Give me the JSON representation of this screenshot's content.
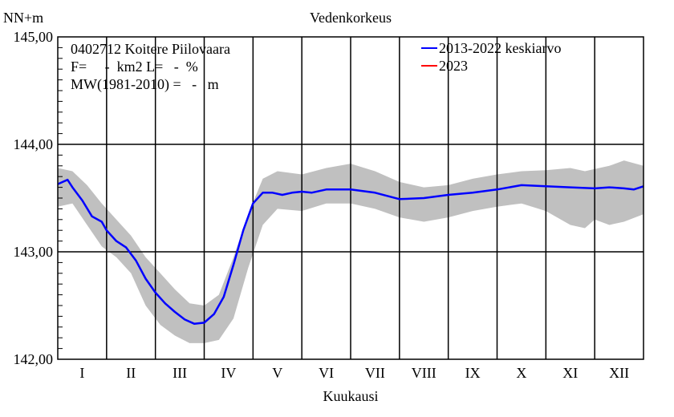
{
  "chart_data": {
    "type": "line",
    "title": "Vedenkorkeus",
    "ylabel": "NN+m",
    "xlabel": "Kuukausi",
    "ylim": [
      142.0,
      145.0
    ],
    "y_ticks": [
      "142,00",
      "143,00",
      "144,00",
      "145,00"
    ],
    "y_tick_values": [
      142.0,
      143.0,
      144.0,
      145.0
    ],
    "categories": [
      "I",
      "II",
      "III",
      "IV",
      "V",
      "VI",
      "VII",
      "VIII",
      "IX",
      "X",
      "XI",
      "XII"
    ],
    "xlim": [
      0,
      12
    ],
    "grid": true,
    "info": {
      "station": "0402712 Koitere Piilovaara",
      "area": "F=     -  km2 L=   -  %",
      "mw": "MW(1981-2010) =   -   m"
    },
    "legend_placement": "top-right",
    "series": [
      {
        "name": "2013-2022 keskiarvo",
        "color": "#0000ff",
        "x": [
          0,
          0.1,
          0.2,
          0.3,
          0.5,
          0.7,
          0.9,
          1.0,
          1.2,
          1.4,
          1.6,
          1.8,
          2.0,
          2.2,
          2.4,
          2.6,
          2.8,
          3.0,
          3.2,
          3.4,
          3.6,
          3.8,
          4.0,
          4.2,
          4.4,
          4.6,
          4.8,
          5.0,
          5.2,
          5.5,
          6.0,
          6.5,
          7.0,
          7.5,
          8.0,
          8.5,
          9.0,
          9.5,
          10.0,
          10.5,
          11.0,
          11.3,
          11.6,
          11.8,
          12.0
        ],
        "y": [
          143.63,
          143.65,
          143.67,
          143.6,
          143.48,
          143.33,
          143.28,
          143.2,
          143.1,
          143.04,
          142.92,
          142.75,
          142.62,
          142.52,
          142.44,
          142.37,
          142.33,
          142.34,
          142.42,
          142.58,
          142.88,
          143.2,
          143.45,
          143.55,
          143.55,
          143.53,
          143.55,
          143.56,
          143.55,
          143.58,
          143.58,
          143.55,
          143.49,
          143.5,
          143.53,
          143.55,
          143.58,
          143.62,
          143.61,
          143.6,
          143.59,
          143.6,
          143.59,
          143.58,
          143.61
        ]
      },
      {
        "name": "2023",
        "color": "#ff0000",
        "x": [],
        "y": []
      }
    ],
    "band": {
      "color": "#c0c0c0",
      "x": [
        0,
        0.3,
        0.6,
        0.9,
        1.2,
        1.5,
        1.8,
        2.1,
        2.4,
        2.7,
        3.0,
        3.3,
        3.6,
        3.9,
        4.2,
        4.5,
        5.0,
        5.5,
        6.0,
        6.5,
        7.0,
        7.5,
        8.0,
        8.5,
        9.0,
        9.5,
        10.0,
        10.5,
        10.8,
        11.0,
        11.3,
        11.6,
        12.0
      ],
      "upper": [
        143.78,
        143.75,
        143.62,
        143.45,
        143.3,
        143.15,
        142.95,
        142.8,
        142.65,
        142.52,
        142.5,
        142.6,
        142.95,
        143.35,
        143.68,
        143.75,
        143.72,
        143.78,
        143.82,
        143.75,
        143.65,
        143.6,
        143.62,
        143.68,
        143.72,
        143.75,
        143.76,
        143.78,
        143.75,
        143.77,
        143.8,
        143.85,
        143.8
      ],
      "lower": [
        143.42,
        143.45,
        143.25,
        143.05,
        142.95,
        142.8,
        142.5,
        142.32,
        142.22,
        142.15,
        142.15,
        142.18,
        142.38,
        142.85,
        143.25,
        143.4,
        143.38,
        143.45,
        143.45,
        143.4,
        143.32,
        143.28,
        143.32,
        143.38,
        143.42,
        143.45,
        143.38,
        143.25,
        143.22,
        143.3,
        143.25,
        143.28,
        143.35
      ]
    }
  }
}
